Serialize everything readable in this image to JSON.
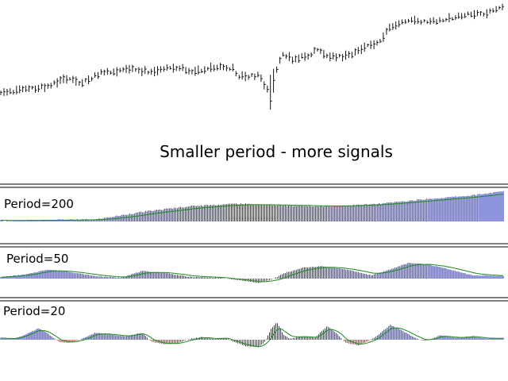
{
  "caption": "Smaller period - more signals",
  "chart_data": [
    {
      "type": "line",
      "name": "price",
      "description_style": "bar-chart (OHLC) price series",
      "x_range": [
        0,
        160
      ],
      "y_range": [
        0,
        1
      ],
      "anchors": [
        [
          0,
          0.16
        ],
        [
          6,
          0.21
        ],
        [
          14,
          0.23
        ],
        [
          20,
          0.31
        ],
        [
          26,
          0.27
        ],
        [
          32,
          0.36
        ],
        [
          40,
          0.4
        ],
        [
          48,
          0.38
        ],
        [
          56,
          0.42
        ],
        [
          62,
          0.38
        ],
        [
          70,
          0.43
        ],
        [
          74,
          0.41
        ],
        [
          76,
          0.33
        ],
        [
          82,
          0.34
        ],
        [
          86,
          0.18
        ],
        [
          88,
          0.41
        ],
        [
          90,
          0.55
        ],
        [
          93,
          0.49
        ],
        [
          97,
          0.52
        ],
        [
          101,
          0.58
        ],
        [
          105,
          0.53
        ],
        [
          110,
          0.52
        ],
        [
          116,
          0.6
        ],
        [
          121,
          0.67
        ],
        [
          124,
          0.8
        ],
        [
          130,
          0.86
        ],
        [
          136,
          0.85
        ],
        [
          142,
          0.87
        ],
        [
          148,
          0.92
        ],
        [
          154,
          0.93
        ],
        [
          160,
          1.0
        ]
      ]
    },
    {
      "type": "bar",
      "label": "Period=200",
      "x_range": [
        0,
        160
      ],
      "anchors": [
        [
          0,
          0.02
        ],
        [
          30,
          0.06
        ],
        [
          45,
          0.3
        ],
        [
          60,
          0.48
        ],
        [
          75,
          0.56
        ],
        [
          90,
          0.5
        ],
        [
          105,
          0.48
        ],
        [
          120,
          0.55
        ],
        [
          135,
          0.7
        ],
        [
          150,
          0.82
        ],
        [
          160,
          0.95
        ]
      ],
      "colors": {
        "positive": "#1e2bbb",
        "negative": "#c62020",
        "signal": "#1a8a1a"
      }
    },
    {
      "type": "bar",
      "label": "Period=50",
      "x_range": [
        0,
        160
      ],
      "anchors": [
        [
          0,
          0.1
        ],
        [
          8,
          0.25
        ],
        [
          15,
          0.55
        ],
        [
          22,
          0.4
        ],
        [
          30,
          0.15
        ],
        [
          38,
          0.05
        ],
        [
          45,
          0.45
        ],
        [
          52,
          0.35
        ],
        [
          60,
          0.1
        ],
        [
          70,
          0.05
        ],
        [
          76,
          -0.15
        ],
        [
          82,
          -0.4
        ],
        [
          86,
          -0.1
        ],
        [
          90,
          0.3
        ],
        [
          96,
          0.65
        ],
        [
          102,
          0.75
        ],
        [
          110,
          0.55
        ],
        [
          118,
          0.2
        ],
        [
          124,
          0.55
        ],
        [
          130,
          0.95
        ],
        [
          136,
          0.85
        ],
        [
          142,
          0.6
        ],
        [
          150,
          0.2
        ],
        [
          160,
          0.15
        ]
      ],
      "colors": {
        "positive": "#1e2bbb",
        "negative": "#c62020",
        "signal": "#1a8a1a"
      }
    },
    {
      "type": "bar",
      "label": "Period=20",
      "x_range": [
        0,
        160
      ],
      "anchors": [
        [
          0,
          0.1
        ],
        [
          4,
          0.05
        ],
        [
          8,
          0.3
        ],
        [
          12,
          0.65
        ],
        [
          15,
          0.35
        ],
        [
          19,
          -0.2
        ],
        [
          22,
          -0.25
        ],
        [
          26,
          0.05
        ],
        [
          30,
          0.4
        ],
        [
          35,
          0.3
        ],
        [
          40,
          0.2
        ],
        [
          45,
          0.4
        ],
        [
          48,
          -0.15
        ],
        [
          52,
          -0.35
        ],
        [
          56,
          -0.3
        ],
        [
          60,
          0.05
        ],
        [
          64,
          0.15
        ],
        [
          68,
          0.05
        ],
        [
          72,
          0.1
        ],
        [
          74,
          -0.15
        ],
        [
          78,
          -0.5
        ],
        [
          82,
          -0.6
        ],
        [
          84,
          -0.2
        ],
        [
          86,
          0.6
        ],
        [
          88,
          1.0
        ],
        [
          90,
          0.3
        ],
        [
          92,
          0.05
        ],
        [
          96,
          0.2
        ],
        [
          100,
          0.1
        ],
        [
          104,
          0.8
        ],
        [
          107,
          0.35
        ],
        [
          110,
          -0.25
        ],
        [
          114,
          -0.45
        ],
        [
          117,
          -0.1
        ],
        [
          120,
          0.25
        ],
        [
          124,
          0.85
        ],
        [
          127,
          0.6
        ],
        [
          131,
          0.2
        ],
        [
          135,
          -0.1
        ],
        [
          140,
          0.25
        ],
        [
          145,
          0.1
        ],
        [
          150,
          0.2
        ],
        [
          155,
          0.05
        ],
        [
          160,
          0.1
        ]
      ],
      "colors": {
        "positive": "#1e2bbb",
        "negative": "#c62020",
        "signal": "#1a8a1a"
      }
    }
  ]
}
